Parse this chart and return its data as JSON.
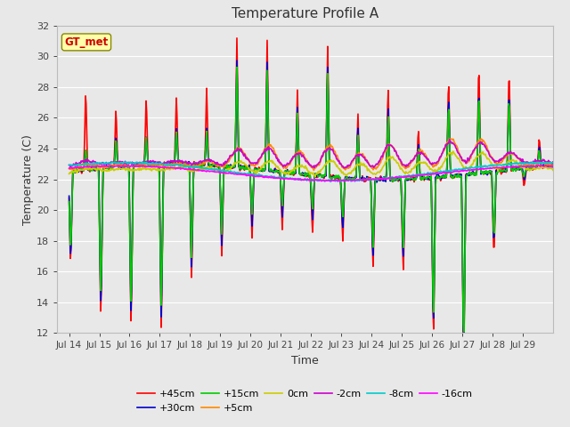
{
  "title": "Temperature Profile A",
  "xlabel": "Time",
  "ylabel": "Temperature (C)",
  "ylim": [
    12,
    32
  ],
  "yticks": [
    12,
    14,
    16,
    18,
    20,
    22,
    24,
    26,
    28,
    30,
    32
  ],
  "xtick_labels": [
    "Jul 14",
    "Jul 15",
    "Jul 16",
    "Jul 17",
    "Jul 18",
    "Jul 19",
    "Jul 20",
    "Jul 21",
    "Jul 22",
    "Jul 23",
    "Jul 24",
    "Jul 25",
    "Jul 26",
    "Jul 27",
    "Jul 28",
    "Jul 29"
  ],
  "annotation_text": "GT_met",
  "annotation_color": "#cc0000",
  "annotation_bg": "#ffffaa",
  "annotation_border": "#888800",
  "bg_color": "#e8e8e8",
  "grid_color": "#ffffff",
  "series": [
    {
      "label": "+45cm",
      "color": "#ff0000",
      "lw": 1.2
    },
    {
      "label": "+30cm",
      "color": "#0000cc",
      "lw": 1.2
    },
    {
      "label": "+15cm",
      "color": "#00cc00",
      "lw": 1.2
    },
    {
      "label": "+5cm",
      "color": "#ff8800",
      "lw": 1.2
    },
    {
      "label": "0cm",
      "color": "#cccc00",
      "lw": 1.2
    },
    {
      "label": "-2cm",
      "color": "#cc00cc",
      "lw": 1.2
    },
    {
      "label": "-8cm",
      "color": "#00cccc",
      "lw": 1.2
    },
    {
      "label": "-16cm",
      "color": "#ff00ff",
      "lw": 1.2
    }
  ]
}
